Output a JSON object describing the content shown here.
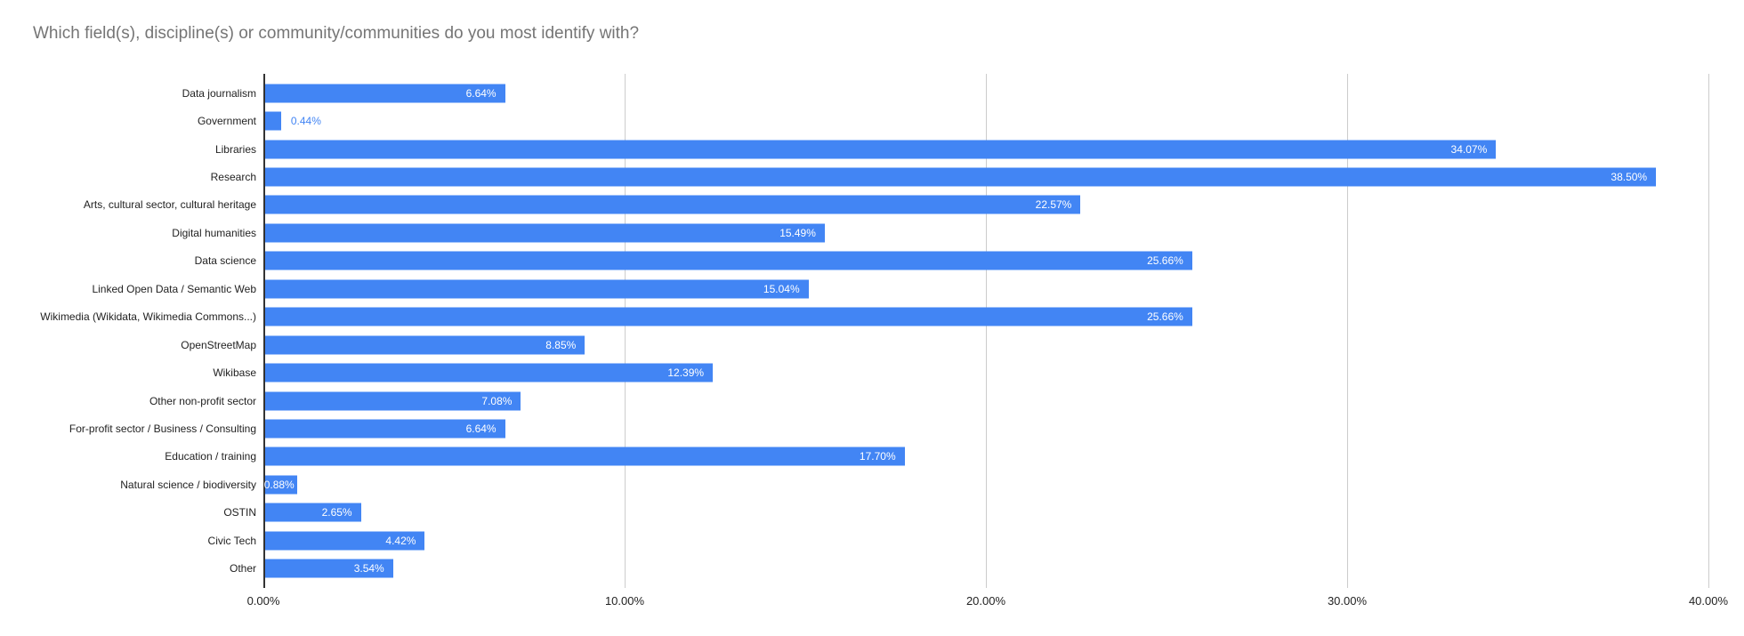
{
  "colors": {
    "bar": "#4285f4",
    "gridline": "#cccccc",
    "axis_line": "#333333",
    "title_text": "#757575",
    "category_label": "#222222",
    "value_label_inside": "#ffffff",
    "value_label_outside": "#4285f4",
    "tick_label": "#222222",
    "background": "#ffffff"
  },
  "chart_data": {
    "type": "bar",
    "orientation": "horizontal",
    "title": "Which field(s), discipline(s) or community/communities do you most identify with?",
    "xlabel": "",
    "ylabel": "",
    "xlim": [
      0,
      40
    ],
    "grid": true,
    "legend": "none",
    "categories": [
      "Data journalism",
      "Government",
      "Libraries",
      "Research",
      "Arts, cultural sector, cultural heritage",
      "Digital humanities",
      "Data science",
      "Linked Open Data / Semantic Web",
      "Wikimedia (Wikidata, Wikimedia Commons...)",
      "OpenStreetMap",
      "Wikibase",
      "Other non-profit sector",
      "For-profit sector / Business / Consulting",
      "Education / training",
      "Natural science / biodiversity",
      "OSTIN",
      "Civic Tech",
      "Other"
    ],
    "values": [
      6.64,
      0.44,
      34.07,
      38.5,
      22.57,
      15.49,
      25.66,
      15.04,
      25.66,
      8.85,
      12.39,
      7.08,
      6.64,
      17.7,
      0.88,
      2.65,
      4.42,
      3.54
    ],
    "value_labels": [
      "6.64%",
      "0.44%",
      "34.07%",
      "38.50%",
      "22.57%",
      "15.49%",
      "25.66%",
      "15.04%",
      "25.66%",
      "8.85%",
      "12.39%",
      "7.08%",
      "6.64%",
      "17.70%",
      "0.88%",
      "2.65%",
      "4.42%",
      "3.54%"
    ],
    "x_tick_values": [
      0,
      10,
      20,
      30,
      40
    ],
    "x_tick_labels": [
      "0.00%",
      "10.00%",
      "20.00%",
      "30.00%",
      "40.00%"
    ]
  }
}
